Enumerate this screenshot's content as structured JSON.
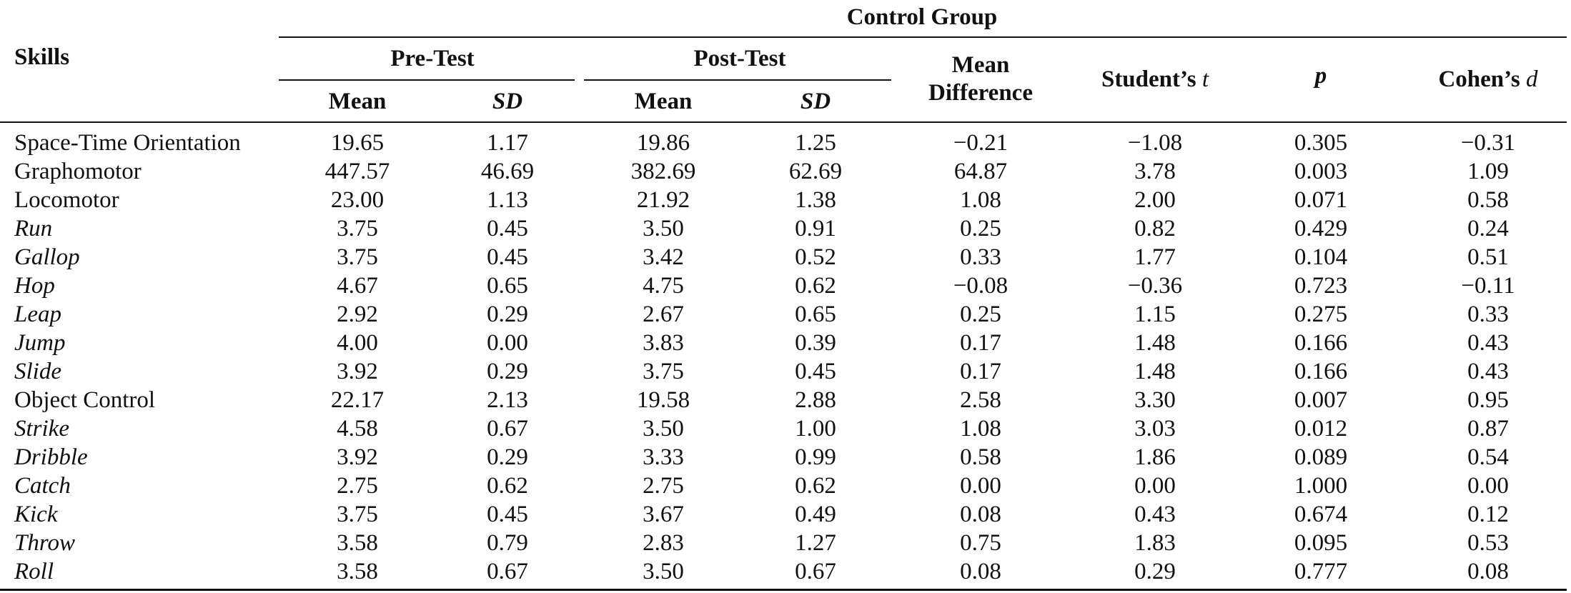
{
  "header": {
    "group_label": "Control Group",
    "skills_label": "Skills",
    "pre_test_label": "Pre-Test",
    "post_test_label": "Post-Test",
    "mean_label": "Mean",
    "sd_label": "SD",
    "mean_diff_line1": "Mean",
    "mean_diff_line2": "Difference",
    "students_t_prefix": "Student’s ",
    "students_t_var": "t",
    "p_label": "p",
    "cohens_d_prefix": "Cohen’s ",
    "cohens_d_var": "d"
  },
  "rows": [
    {
      "skill": "Space-Time Orientation",
      "sub": false,
      "values": [
        "19.65",
        "1.17",
        "19.86",
        "1.25",
        "−0.21",
        "−1.08",
        "0.305",
        "−0.31"
      ]
    },
    {
      "skill": "Graphomotor",
      "sub": false,
      "values": [
        "447.57",
        "46.69",
        "382.69",
        "62.69",
        "64.87",
        "3.78",
        "0.003",
        "1.09"
      ]
    },
    {
      "skill": "Locomotor",
      "sub": false,
      "values": [
        "23.00",
        "1.13",
        "21.92",
        "1.38",
        "1.08",
        "2.00",
        "0.071",
        "0.58"
      ]
    },
    {
      "skill": "Run",
      "sub": true,
      "values": [
        "3.75",
        "0.45",
        "3.50",
        "0.91",
        "0.25",
        "0.82",
        "0.429",
        "0.24"
      ]
    },
    {
      "skill": "Gallop",
      "sub": true,
      "values": [
        "3.75",
        "0.45",
        "3.42",
        "0.52",
        "0.33",
        "1.77",
        "0.104",
        "0.51"
      ]
    },
    {
      "skill": "Hop",
      "sub": true,
      "values": [
        "4.67",
        "0.65",
        "4.75",
        "0.62",
        "−0.08",
        "−0.36",
        "0.723",
        "−0.11"
      ]
    },
    {
      "skill": "Leap",
      "sub": true,
      "values": [
        "2.92",
        "0.29",
        "2.67",
        "0.65",
        "0.25",
        "1.15",
        "0.275",
        "0.33"
      ]
    },
    {
      "skill": "Jump",
      "sub": true,
      "values": [
        "4.00",
        "0.00",
        "3.83",
        "0.39",
        "0.17",
        "1.48",
        "0.166",
        "0.43"
      ]
    },
    {
      "skill": "Slide",
      "sub": true,
      "values": [
        "3.92",
        "0.29",
        "3.75",
        "0.45",
        "0.17",
        "1.48",
        "0.166",
        "0.43"
      ]
    },
    {
      "skill": "Object Control",
      "sub": false,
      "values": [
        "22.17",
        "2.13",
        "19.58",
        "2.88",
        "2.58",
        "3.30",
        "0.007",
        "0.95"
      ]
    },
    {
      "skill": "Strike",
      "sub": true,
      "values": [
        "4.58",
        "0.67",
        "3.50",
        "1.00",
        "1.08",
        "3.03",
        "0.012",
        "0.87"
      ]
    },
    {
      "skill": "Dribble",
      "sub": true,
      "values": [
        "3.92",
        "0.29",
        "3.33",
        "0.99",
        "0.58",
        "1.86",
        "0.089",
        "0.54"
      ]
    },
    {
      "skill": "Catch",
      "sub": true,
      "values": [
        "2.75",
        "0.62",
        "2.75",
        "0.62",
        "0.00",
        "0.00",
        "1.000",
        "0.00"
      ]
    },
    {
      "skill": "Kick",
      "sub": true,
      "values": [
        "3.75",
        "0.45",
        "3.67",
        "0.49",
        "0.08",
        "0.43",
        "0.674",
        "0.12"
      ]
    },
    {
      "skill": "Throw",
      "sub": true,
      "values": [
        "3.58",
        "0.79",
        "2.83",
        "1.27",
        "0.75",
        "1.83",
        "0.095",
        "0.53"
      ]
    },
    {
      "skill": "Roll",
      "sub": true,
      "values": [
        "3.58",
        "0.67",
        "3.50",
        "0.67",
        "0.08",
        "0.29",
        "0.777",
        "0.08"
      ]
    }
  ]
}
